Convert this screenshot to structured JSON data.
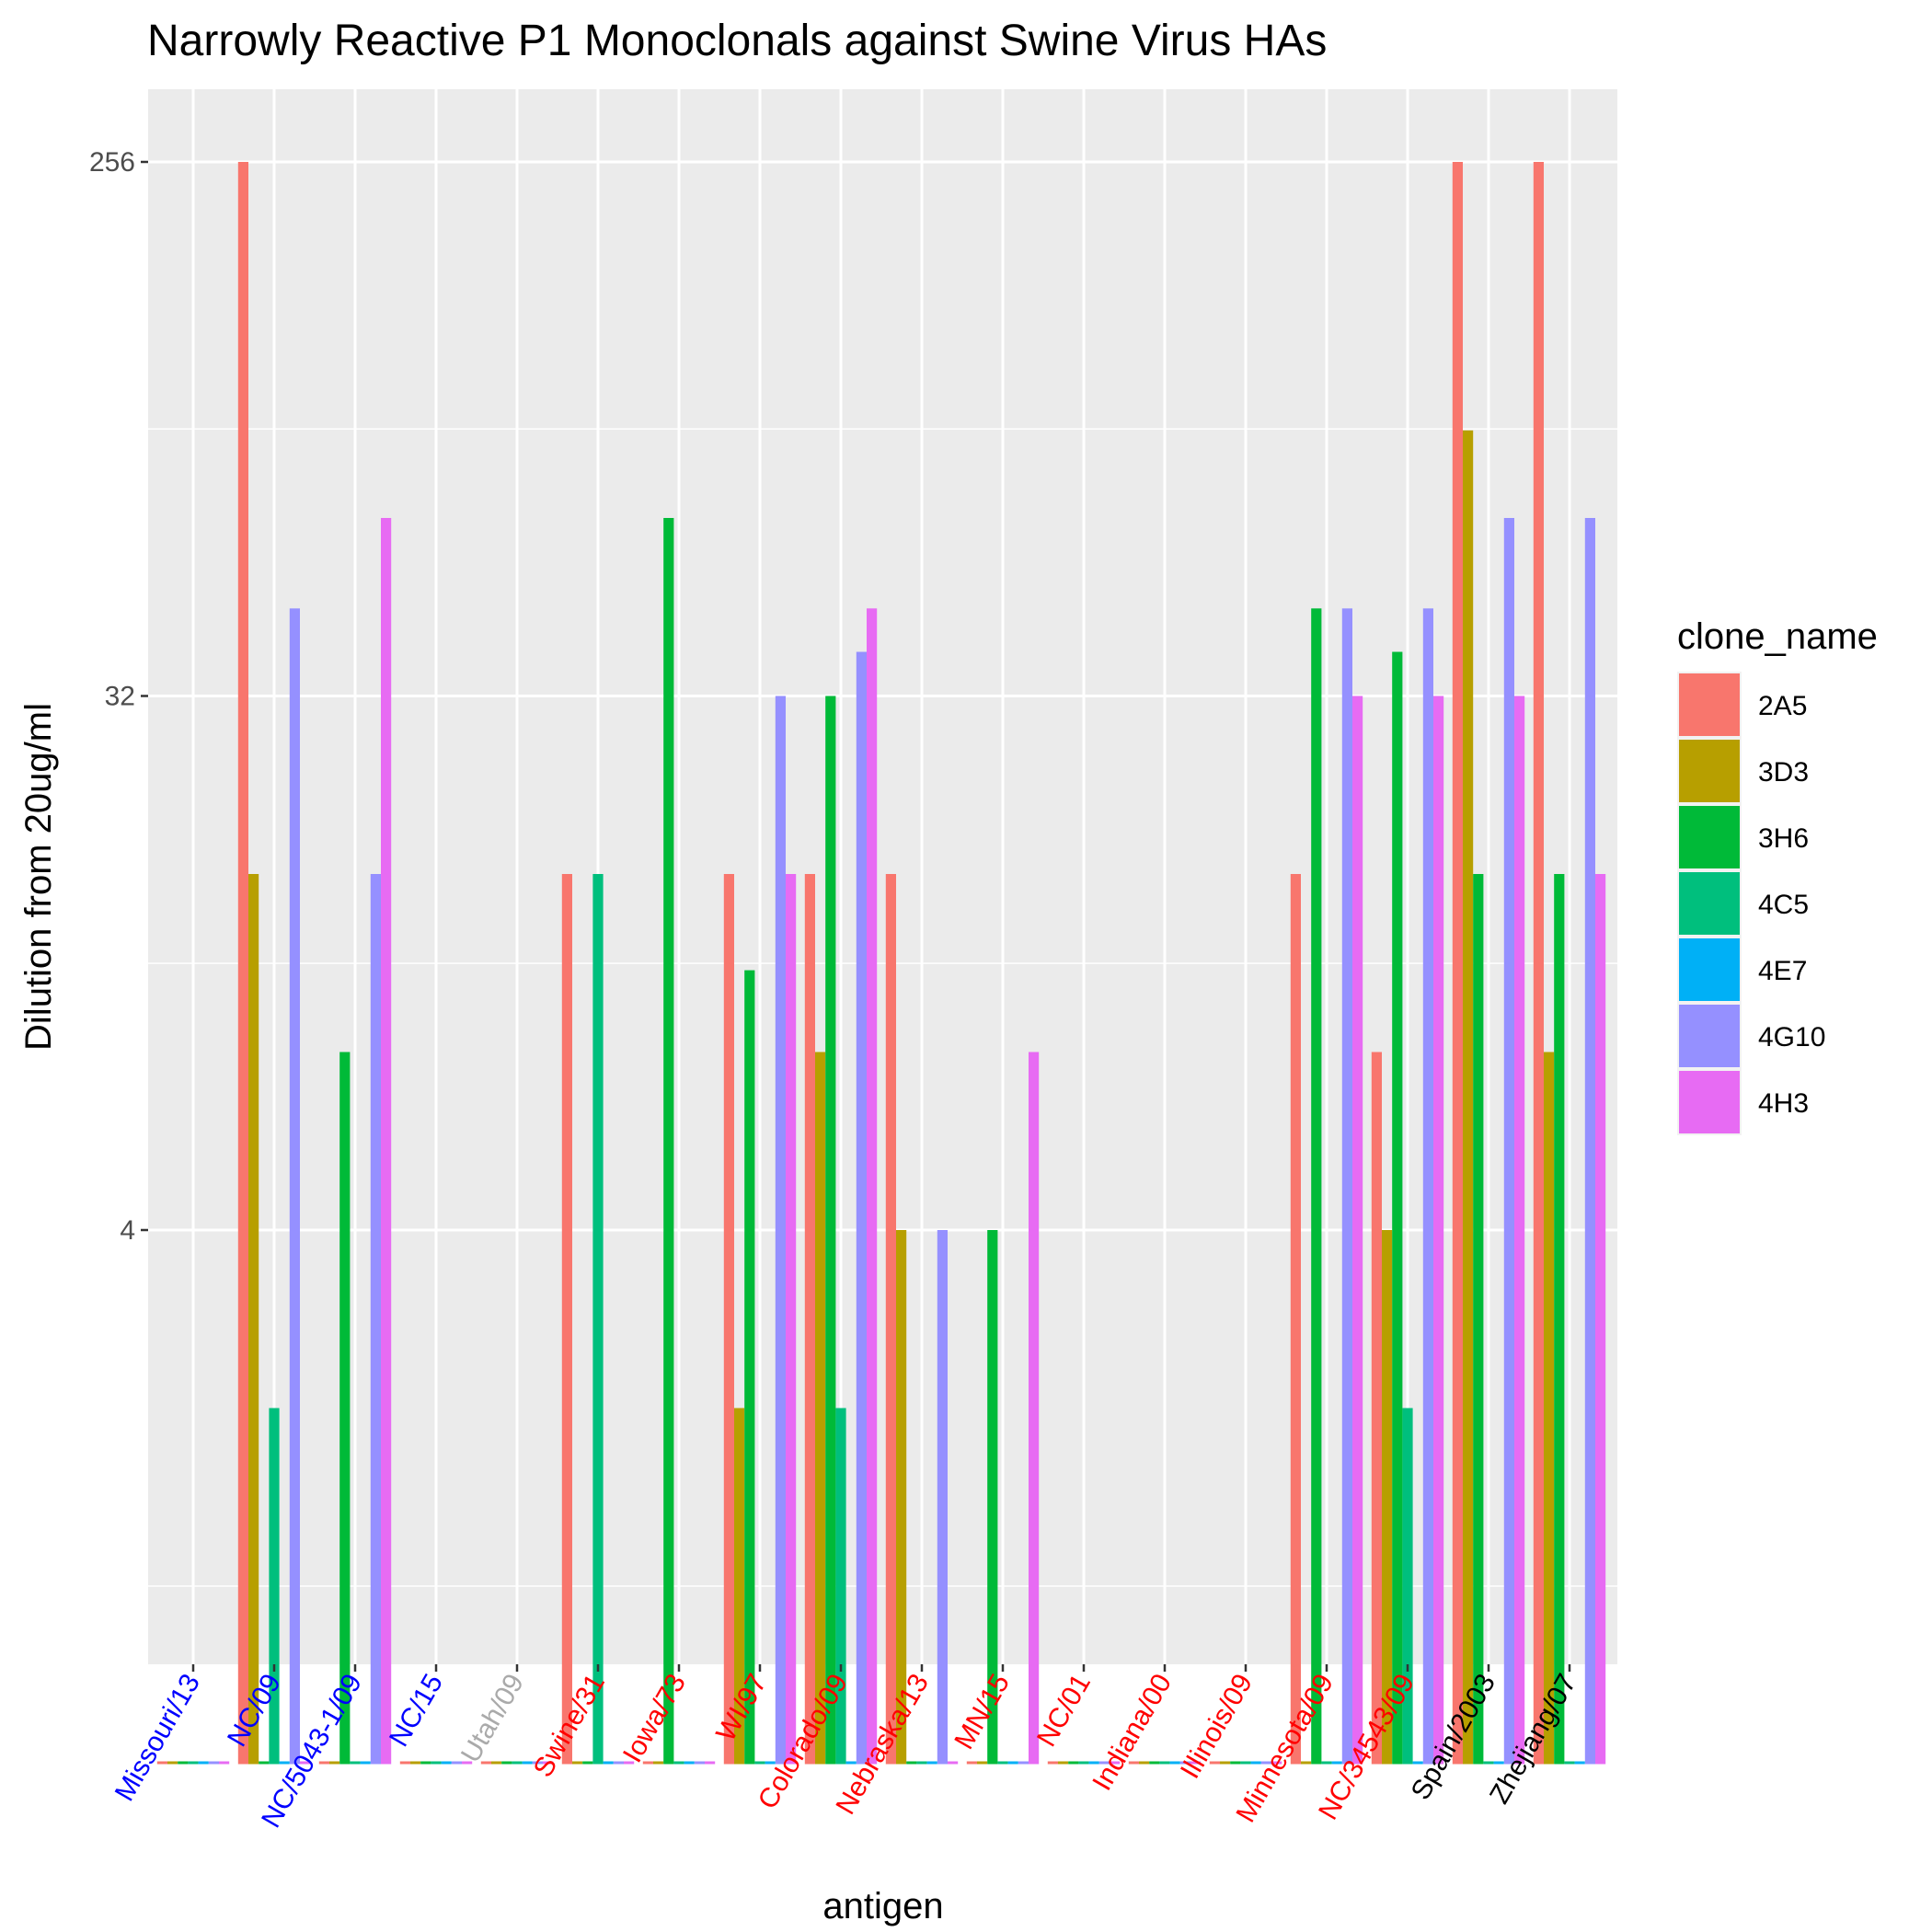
{
  "chart_data": {
    "type": "bar",
    "title": "Narrowly Reactive P1 Monoclonals against Swine Virus HAs",
    "xlabel": "antigen",
    "ylabel": "Dilution from 20ug/ml",
    "y_scale": "log2",
    "ylim": [
      0.33,
      400
    ],
    "yticks": [
      {
        "value": 4,
        "label": "4"
      },
      {
        "value": 32,
        "label": "32"
      },
      {
        "value": 256,
        "label": "256"
      }
    ],
    "y_minor_gridlines": [
      1,
      11.3,
      90.5
    ],
    "grid": true,
    "legend": {
      "title": "clone_name",
      "position": "right"
    },
    "categories": [
      {
        "label": "Missouri/13",
        "color": "#0000ff"
      },
      {
        "label": "NC/09",
        "color": "#0000ff"
      },
      {
        "label": "NC/5043-1/09",
        "color": "#0000ff"
      },
      {
        "label": "NC/15",
        "color": "#0000ff"
      },
      {
        "label": "Utah/09",
        "color": "#aaaaaa"
      },
      {
        "label": "Swine/31",
        "color": "#ff0000"
      },
      {
        "label": "Iowa/73",
        "color": "#ff0000"
      },
      {
        "label": "WI/97",
        "color": "#ff0000"
      },
      {
        "label": "Colorado/09",
        "color": "#ff0000"
      },
      {
        "label": "Nebraska/13",
        "color": "#ff0000"
      },
      {
        "label": "MN/15",
        "color": "#ff0000"
      },
      {
        "label": "NC/01",
        "color": "#ff0000"
      },
      {
        "label": "Indiana/00",
        "color": "#ff0000"
      },
      {
        "label": "Illinois/09",
        "color": "#ff0000"
      },
      {
        "label": "Minnesota/09",
        "color": "#ff0000"
      },
      {
        "label": "NC/34543/09",
        "color": "#ff0000"
      },
      {
        "label": "Spain/2003",
        "color": "#000000"
      },
      {
        "label": "Zhejiang/07",
        "color": "#000000"
      }
    ],
    "series": [
      {
        "name": "2A5",
        "color": "#f8766d",
        "values": [
          0.5,
          256,
          0.5,
          0.5,
          0.5,
          16,
          0.5,
          16,
          16,
          16,
          0.5,
          0.5,
          0.5,
          0.5,
          16,
          8,
          256,
          256
        ]
      },
      {
        "name": "3D3",
        "color": "#b79f00",
        "values": [
          0.5,
          16,
          0.5,
          0.5,
          0.5,
          0.5,
          0.5,
          2,
          8,
          4,
          0.5,
          0.5,
          0.5,
          0.5,
          0.5,
          4,
          90,
          8
        ]
      },
      {
        "name": "3H6",
        "color": "#00ba38",
        "values": [
          0.5,
          0.5,
          8,
          0.5,
          0.5,
          0.5,
          64,
          11,
          32,
          0.5,
          4,
          0.5,
          0.5,
          0.5,
          45,
          38,
          16,
          16
        ]
      },
      {
        "name": "4C5",
        "color": "#00bf7d",
        "values": [
          0.5,
          2,
          0.5,
          0.5,
          0.5,
          16,
          0.5,
          0.5,
          2,
          0.5,
          0.5,
          0.5,
          0.5,
          0.5,
          0.5,
          2,
          0.5,
          0.5
        ]
      },
      {
        "name": "4E7",
        "color": "#00b0f6",
        "values": [
          0.5,
          0.5,
          0.5,
          0.5,
          0.5,
          0.5,
          0.5,
          0.5,
          0.5,
          0.5,
          0.5,
          0.5,
          0.5,
          0.5,
          0.5,
          0.5,
          0.5,
          0.5
        ]
      },
      {
        "name": "4G10",
        "color": "#9590ff",
        "values": [
          0.5,
          45,
          16,
          0.5,
          0.5,
          0.5,
          0.5,
          32,
          38,
          4,
          0.5,
          0.5,
          0.5,
          0.5,
          45,
          45,
          64,
          64
        ]
      },
      {
        "name": "4H3",
        "color": "#e76bf3",
        "values": [
          0.5,
          0.5,
          64,
          0.5,
          0.5,
          0.5,
          0.5,
          16,
          45,
          0.5,
          8,
          0.5,
          0.5,
          0.5,
          32,
          32,
          32,
          16
        ]
      }
    ]
  }
}
